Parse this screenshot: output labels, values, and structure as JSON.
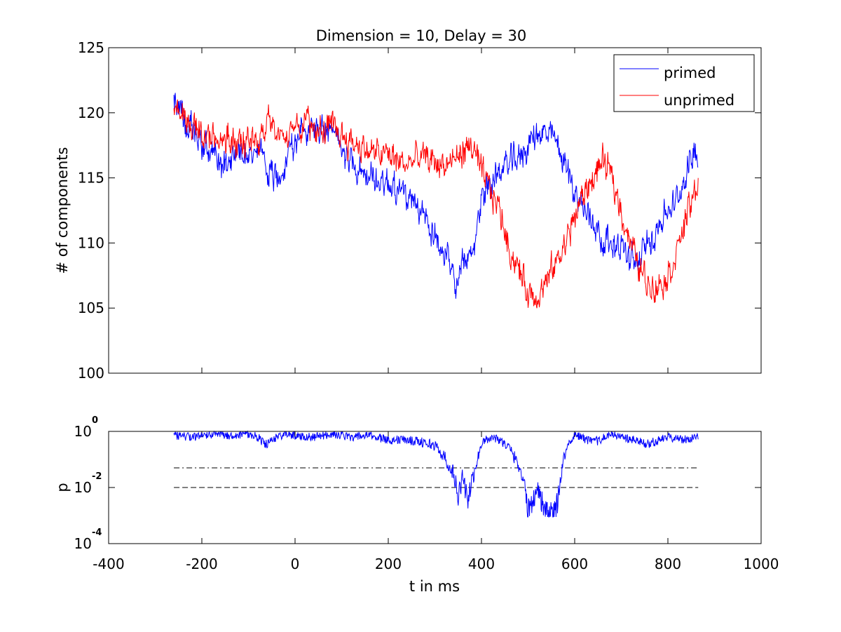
{
  "chart_data": [
    {
      "type": "line",
      "title": "Dimension  = 10, Delay = 30",
      "xlabel": "",
      "ylabel": "# of components",
      "xlim": [
        -400,
        1000
      ],
      "ylim": [
        100,
        125
      ],
      "xticks": [
        -400,
        -200,
        0,
        200,
        400,
        600,
        800,
        1000
      ],
      "yticks": [
        100,
        105,
        110,
        115,
        120,
        125
      ],
      "ytick_labels": [
        "100",
        "105",
        "110",
        "115",
        "120",
        "125"
      ],
      "show_x_tick_labels": false,
      "legend": {
        "placement": "top-right"
      },
      "series": [
        {
          "name": "primed",
          "color": "#0000ff",
          "x": [
            -260,
            -230,
            -200,
            -170,
            -160,
            -140,
            -120,
            -100,
            -80,
            -60,
            -40,
            -20,
            0,
            20,
            40,
            60,
            80,
            100,
            120,
            140,
            160,
            180,
            200,
            220,
            240,
            260,
            280,
            300,
            320,
            340,
            350,
            360,
            380,
            400,
            420,
            440,
            460,
            480,
            500,
            520,
            540,
            560,
            580,
            600,
            620,
            640,
            660,
            680,
            700,
            720,
            740,
            760,
            780,
            800,
            820,
            840,
            860,
            865
          ],
          "values": [
            121.0,
            119.0,
            117.5,
            116.8,
            115.5,
            116.5,
            117.3,
            116.5,
            117.0,
            115.8,
            114.8,
            116.5,
            118.0,
            118.5,
            118.8,
            118.8,
            118.3,
            117.5,
            116.5,
            115.5,
            114.8,
            114.8,
            114.7,
            114.3,
            113.5,
            112.3,
            112.0,
            110.8,
            109.0,
            107.5,
            106.5,
            108.5,
            109.0,
            113.5,
            114.8,
            115.5,
            116.2,
            116.5,
            117.5,
            118.5,
            118.3,
            117.8,
            116.0,
            114.0,
            112.5,
            111.8,
            110.2,
            110.0,
            109.8,
            108.5,
            108.8,
            110.0,
            111.5,
            112.5,
            113.2,
            115.5,
            117.5,
            116.2
          ]
        },
        {
          "name": "unprimed",
          "color": "#ff0000",
          "x": [
            -260,
            -240,
            -220,
            -200,
            -180,
            -160,
            -140,
            -120,
            -100,
            -80,
            -60,
            -40,
            -20,
            0,
            20,
            40,
            60,
            80,
            100,
            120,
            140,
            160,
            180,
            200,
            220,
            240,
            260,
            280,
            300,
            320,
            340,
            360,
            380,
            400,
            420,
            440,
            460,
            480,
            500,
            520,
            540,
            560,
            580,
            600,
            620,
            640,
            660,
            680,
            700,
            720,
            740,
            760,
            780,
            800,
            820,
            840,
            860,
            865
          ],
          "values": [
            120.5,
            120.0,
            119.0,
            118.5,
            118.0,
            118.0,
            118.0,
            117.6,
            117.8,
            118.0,
            119.2,
            118.5,
            118.3,
            119.2,
            119.3,
            119.0,
            118.8,
            118.8,
            118.3,
            117.8,
            117.5,
            117.0,
            116.8,
            116.8,
            116.3,
            116.0,
            116.5,
            116.5,
            116.2,
            116.0,
            116.3,
            117.0,
            117.5,
            115.3,
            114.0,
            112.5,
            109.5,
            108.0,
            106.2,
            106.0,
            107.0,
            108.5,
            110.0,
            112.0,
            113.8,
            115.0,
            116.3,
            115.0,
            112.5,
            110.0,
            108.0,
            106.8,
            106.8,
            107.5,
            109.5,
            112.0,
            114.0,
            115.0
          ]
        }
      ]
    },
    {
      "type": "line",
      "title": "",
      "xlabel": "t in ms",
      "ylabel": "p",
      "xlim": [
        -400,
        1000
      ],
      "ylim": [
        -4,
        0
      ],
      "yscale": "log",
      "xticks": [
        -400,
        -200,
        0,
        200,
        400,
        600,
        800,
        1000
      ],
      "xtick_labels": [
        "-400",
        "-200",
        "0",
        "200",
        "400",
        "600",
        "800",
        "1000"
      ],
      "yticks": [
        {
          "base": "10",
          "exp": "0"
        },
        {
          "base": "10",
          "exp": "-2"
        },
        {
          "base": "10",
          "exp": "-4"
        }
      ],
      "ytick_values": [
        0,
        -2,
        -4
      ],
      "series": [
        {
          "color": "#0000ff",
          "x": [
            -260,
            -220,
            -180,
            -140,
            -100,
            -80,
            -60,
            -40,
            -20,
            0,
            40,
            80,
            120,
            160,
            200,
            240,
            280,
            300,
            320,
            340,
            350,
            360,
            370,
            380,
            400,
            420,
            440,
            460,
            480,
            490,
            500,
            520,
            540,
            560,
            570,
            580,
            600,
            640,
            680,
            720,
            760,
            800,
            840,
            865
          ],
          "log10_values": [
            -0.15,
            -0.2,
            -0.1,
            -0.15,
            -0.1,
            -0.2,
            -0.5,
            -0.2,
            -0.1,
            -0.15,
            -0.2,
            -0.1,
            -0.2,
            -0.15,
            -0.3,
            -0.3,
            -0.4,
            -0.5,
            -0.9,
            -1.5,
            -2.3,
            -1.6,
            -2.5,
            -1.8,
            -0.4,
            -0.2,
            -0.3,
            -0.6,
            -1.2,
            -1.7,
            -2.9,
            -2.0,
            -3.0,
            -2.9,
            -1.6,
            -0.7,
            -0.1,
            -0.4,
            -0.1,
            -0.3,
            -0.45,
            -0.2,
            -0.3,
            -0.15
          ]
        }
      ],
      "reference_lines": [
        {
          "style": "dash-dot",
          "log10_value": -1.3,
          "x": [
            -260,
            865
          ]
        },
        {
          "style": "dashed",
          "log10_value": -2,
          "x": [
            -260,
            865
          ]
        }
      ]
    }
  ]
}
